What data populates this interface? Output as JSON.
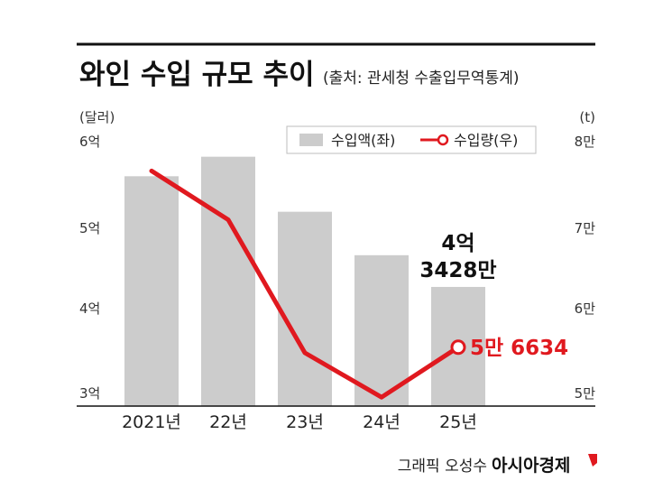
{
  "header": {
    "title": "와인 수입 규모 추이",
    "source": "(출처: 관세청 수출입무역통계)"
  },
  "chart_data": {
    "type": "bar",
    "categories": [
      "2021년",
      "22년",
      "23년",
      "24년",
      "25년"
    ],
    "left_axis": {
      "unit_label": "(달러)",
      "ticks": [
        "3억",
        "4억",
        "5억",
        "6억"
      ],
      "tick_values": [
        300000000,
        400000000,
        500000000,
        600000000
      ],
      "ylim": [
        300000000,
        600000000
      ]
    },
    "right_axis": {
      "unit_label": "(t)",
      "ticks": [
        "5만",
        "6만",
        "7만",
        "8만"
      ],
      "tick_values": [
        50000,
        60000,
        70000,
        80000
      ],
      "ylim": [
        50000,
        80000
      ]
    },
    "series": [
      {
        "name": "수입액(좌)",
        "type": "bar",
        "axis": "left",
        "color": "#cccccc",
        "values": [
          559000000,
          581000000,
          519000000,
          470000000,
          434280000
        ]
      },
      {
        "name": "수입량(우)",
        "type": "line",
        "axis": "right",
        "color": "#e0191f",
        "values": [
          76500,
          71000,
          56000,
          51000,
          56634
        ]
      }
    ],
    "annotations": {
      "bar_last_line1": "4억",
      "bar_last_line2": "3428만",
      "line_last": "5만 6634"
    },
    "legend_placement": "top-right",
    "grid": false
  },
  "footer": {
    "credit": "그래픽 오성수",
    "brand": "아시아경제"
  }
}
